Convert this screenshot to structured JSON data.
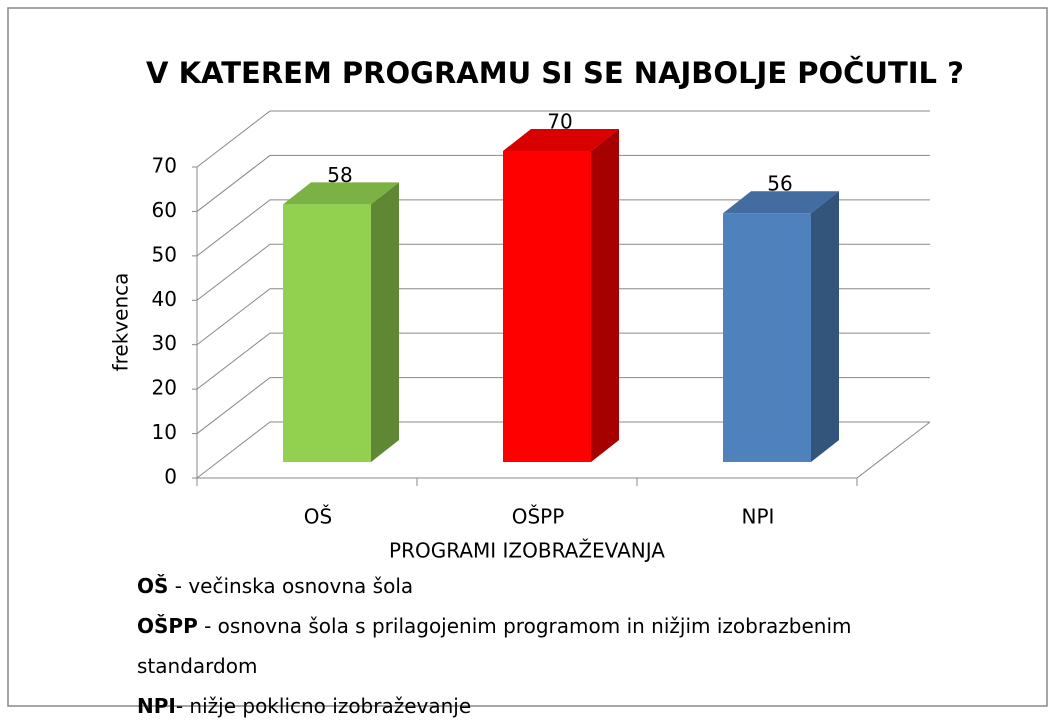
{
  "chart_data": {
    "type": "bar3d",
    "title": "V KATEREM PROGRAMU SI SE NAJBOLJE POČUTIL ?",
    "categories": [
      "OŠ",
      "OŠPP",
      "NPI"
    ],
    "values": [
      58,
      70,
      56
    ],
    "colors": [
      "#92d050",
      "#ff0000",
      "#4f81bd"
    ],
    "x_label": "PROGRAMI IZOBRAŽEVANJA",
    "y_label": "frekvenca",
    "ylim": [
      0,
      70
    ],
    "yticks": [
      0,
      10,
      20,
      30,
      40,
      50,
      60,
      70
    ],
    "grid": true
  },
  "notes": [
    {
      "term": "OŠ",
      "text": " - večinska osnovna šola"
    },
    {
      "term": "OŠPP",
      "text": " - osnovna šola s prilagojenim programom in nižjim izobrazbenim standardom"
    },
    {
      "term": "NPI",
      "text": "- nižje poklicno izobraževanje"
    }
  ]
}
